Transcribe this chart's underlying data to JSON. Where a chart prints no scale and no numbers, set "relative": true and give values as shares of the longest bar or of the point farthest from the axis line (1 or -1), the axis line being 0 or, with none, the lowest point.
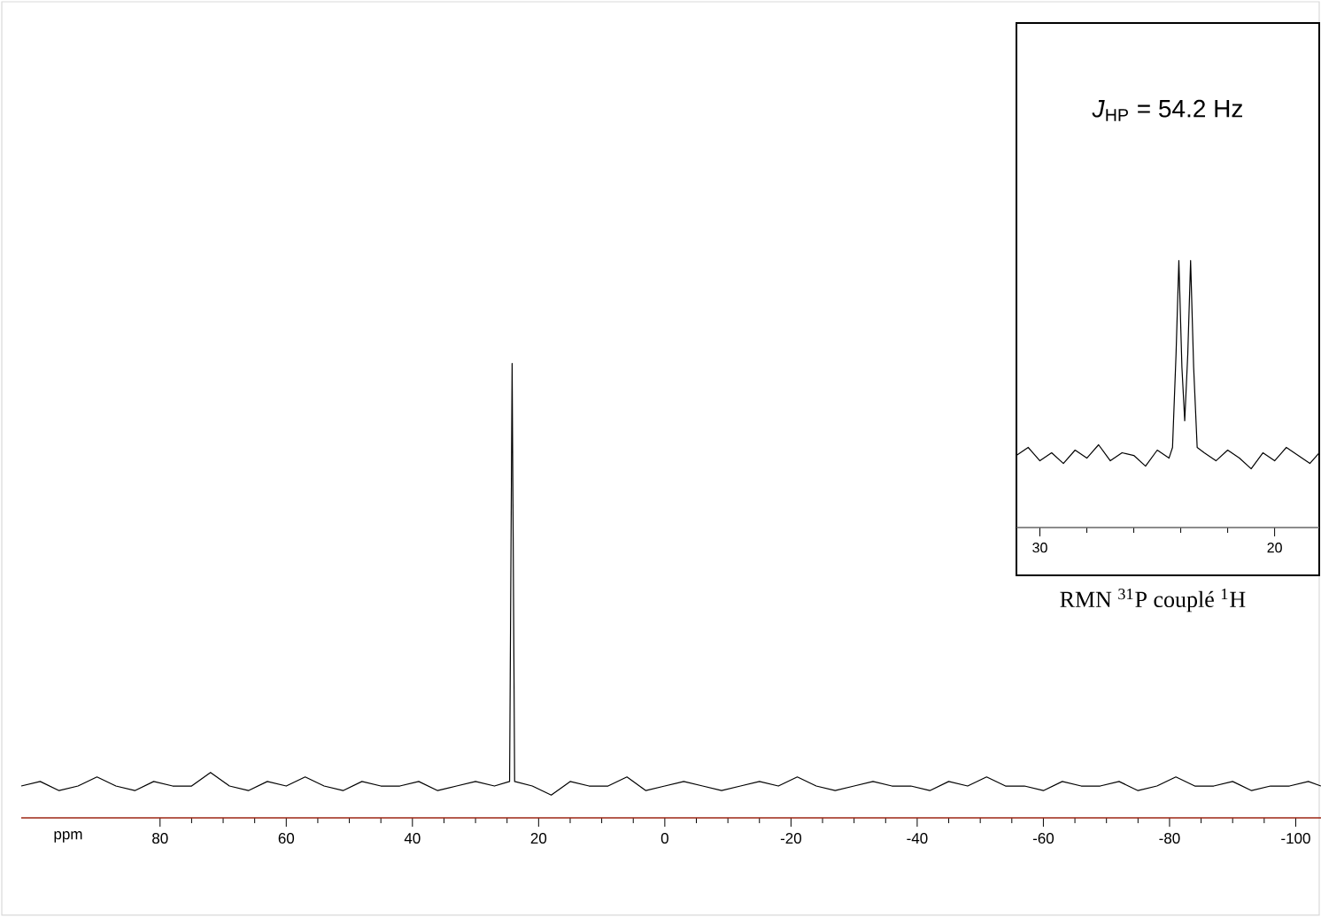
{
  "chart_data": [
    {
      "type": "line",
      "relative": true,
      "xlabel": "ppm",
      "color": "#000000",
      "xlim": [
        102,
        -104
      ],
      "xticks": [
        80,
        60,
        40,
        20,
        0,
        -20,
        -40,
        -60,
        -80,
        -100
      ],
      "x": [
        102,
        99,
        96,
        93,
        90,
        87,
        84,
        81,
        78,
        75,
        72,
        69,
        66,
        63,
        60,
        57,
        54,
        51,
        48,
        45,
        42,
        39,
        36,
        33,
        30,
        27,
        24.6,
        24.2,
        23.8,
        21,
        18,
        15,
        12,
        9,
        6,
        3,
        0,
        -3,
        -6,
        -9,
        -12,
        -15,
        -18,
        -21,
        -24,
        -27,
        -30,
        -33,
        -36,
        -39,
        -42,
        -45,
        -48,
        -51,
        -54,
        -57,
        -60,
        -63,
        -66,
        -69,
        -72,
        -75,
        -78,
        -81,
        -84,
        -87,
        -90,
        -93,
        -96,
        -99,
        -102,
        -104
      ],
      "values": [
        0.07,
        0.08,
        0.06,
        0.07,
        0.09,
        0.07,
        0.06,
        0.08,
        0.07,
        0.07,
        0.1,
        0.07,
        0.06,
        0.08,
        0.07,
        0.09,
        0.07,
        0.06,
        0.08,
        0.07,
        0.07,
        0.08,
        0.06,
        0.07,
        0.08,
        0.07,
        0.08,
        1,
        0.08,
        0.07,
        0.05,
        0.08,
        0.07,
        0.07,
        0.09,
        0.06,
        0.07,
        0.08,
        0.07,
        0.06,
        0.07,
        0.08,
        0.07,
        0.09,
        0.07,
        0.06,
        0.07,
        0.08,
        0.07,
        0.07,
        0.06,
        0.08,
        0.07,
        0.09,
        0.07,
        0.07,
        0.06,
        0.08,
        0.07,
        0.07,
        0.08,
        0.06,
        0.07,
        0.09,
        0.07,
        0.07,
        0.08,
        0.06,
        0.07,
        0.07,
        0.08,
        0.07
      ]
    },
    {
      "type": "line",
      "relative": true,
      "color": "#000000",
      "xlim": [
        31,
        18.1
      ],
      "xticks": [
        30,
        20
      ],
      "x": [
        31,
        30.5,
        30,
        29.5,
        29,
        28.5,
        28,
        27.5,
        27,
        26.5,
        26,
        25.5,
        25,
        24.5,
        24.35,
        24.2,
        24.08,
        23.95,
        23.83,
        23.7,
        23.58,
        23.45,
        23.3,
        23,
        22.5,
        22,
        21.5,
        21,
        20.5,
        20,
        19.5,
        19,
        18.5,
        18.1
      ],
      "values": [
        0.27,
        0.3,
        0.25,
        0.28,
        0.24,
        0.29,
        0.26,
        0.31,
        0.25,
        0.28,
        0.27,
        0.23,
        0.29,
        0.26,
        0.3,
        0.65,
        1,
        0.6,
        0.4,
        0.65,
        1,
        0.6,
        0.3,
        0.28,
        0.25,
        0.29,
        0.26,
        0.22,
        0.28,
        0.25,
        0.3,
        0.27,
        0.24,
        0.28
      ],
      "annotations": [
        "*J*$_{HP}$ = 54.2 Hz",
        "RMN $^{31}$P couplé $^{1}$H"
      ]
    }
  ]
}
